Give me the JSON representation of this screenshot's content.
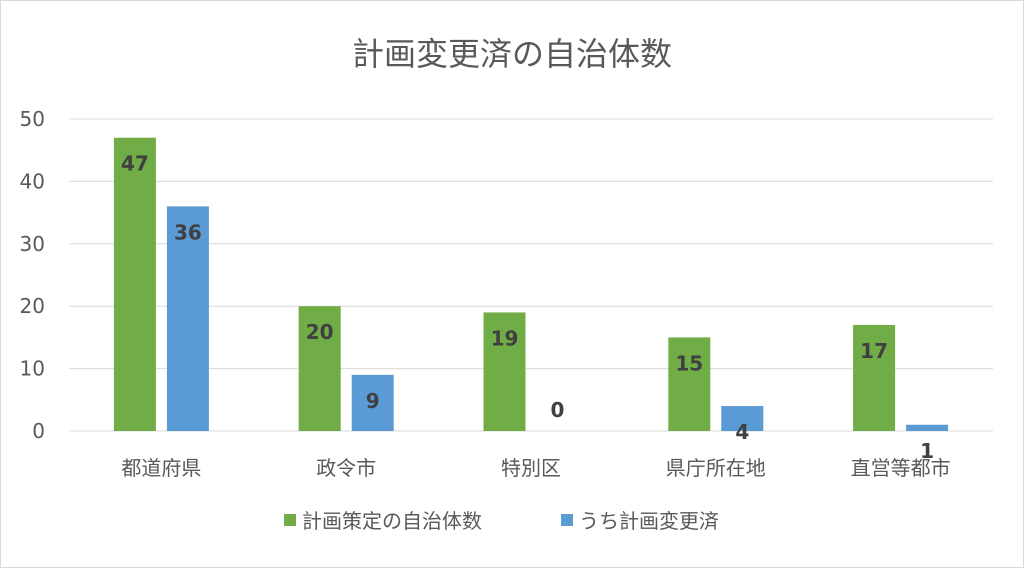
{
  "chart_data": {
    "type": "bar",
    "title": "計画変更済の自治体数",
    "xlabel": "",
    "ylabel": "",
    "categories": [
      "都道府県",
      "政令市",
      "特別区",
      "県庁所在地",
      "直営等都市"
    ],
    "series": [
      {
        "name": "計画策定の自治体数",
        "values": [
          47,
          20,
          19,
          15,
          17
        ],
        "color": "#70ad47"
      },
      {
        "name": "うち計画変更済",
        "values": [
          36,
          9,
          0,
          4,
          1
        ],
        "color": "#5b9bd5"
      }
    ],
    "ylim": [
      0,
      50
    ],
    "yticks": [
      0,
      10,
      20,
      30,
      40,
      50
    ],
    "grid": true,
    "data_labels": true,
    "legend_position": "bottom"
  }
}
